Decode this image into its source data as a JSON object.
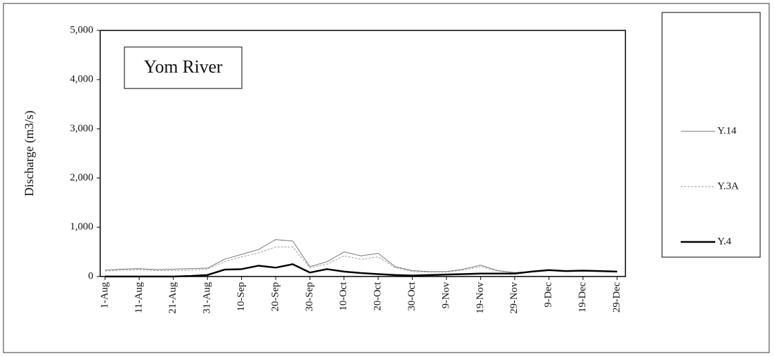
{
  "chart_data": {
    "type": "line",
    "title": "Yom River",
    "y_label": "Discharge (m3/s)",
    "categories": [
      "1-Aug",
      null,
      "11-Aug",
      null,
      "21-Aug",
      null,
      "31-Aug",
      null,
      "10-Sep",
      null,
      "20-Sep",
      null,
      "30-Sep",
      null,
      "10-Oct",
      null,
      "20-Oct",
      null,
      "30-Oct",
      null,
      "9-Nov",
      null,
      "19-Nov",
      null,
      "29-Nov",
      null,
      "9-Dec",
      null,
      "19-Dec",
      null,
      "29-Dec"
    ],
    "series": [
      {
        "name": "Y.14",
        "color": "#777777",
        "width": 1,
        "dash": "none",
        "values": [
          130,
          150,
          160,
          140,
          150,
          160,
          170,
          350,
          450,
          550,
          750,
          720,
          200,
          300,
          500,
          420,
          470,
          200,
          120,
          100,
          100,
          150,
          230,
          120,
          80,
          100,
          130,
          110,
          120,
          110,
          100
        ]
      },
      {
        "name": "Y.3A",
        "color": "#999999",
        "width": 1,
        "dash": "3 2",
        "values": [
          110,
          130,
          140,
          120,
          120,
          130,
          150,
          300,
          400,
          480,
          600,
          600,
          180,
          250,
          420,
          350,
          400,
          180,
          100,
          90,
          90,
          130,
          200,
          110,
          70,
          90,
          120,
          100,
          110,
          100,
          90
        ]
      },
      {
        "name": "Y.4",
        "color": "#000000",
        "width": 2.5,
        "dash": "none",
        "values": [
          0,
          0,
          0,
          0,
          0,
          10,
          30,
          140,
          150,
          220,
          180,
          250,
          80,
          150,
          100,
          70,
          50,
          30,
          20,
          30,
          40,
          50,
          60,
          60,
          60,
          100,
          130,
          110,
          120,
          110,
          100
        ]
      }
    ],
    "ylim": [
      0,
      5000
    ],
    "yticks": [
      0,
      {
        "value": 1000,
        "label": "1,000"
      },
      {
        "value": 2000,
        "label": "2,000"
      },
      {
        "value": 3000,
        "label": "3,000"
      },
      {
        "value": 4000,
        "label": "4,000"
      },
      {
        "value": 5000,
        "label": "5,000"
      }
    ],
    "grid": false,
    "legend": "right"
  }
}
